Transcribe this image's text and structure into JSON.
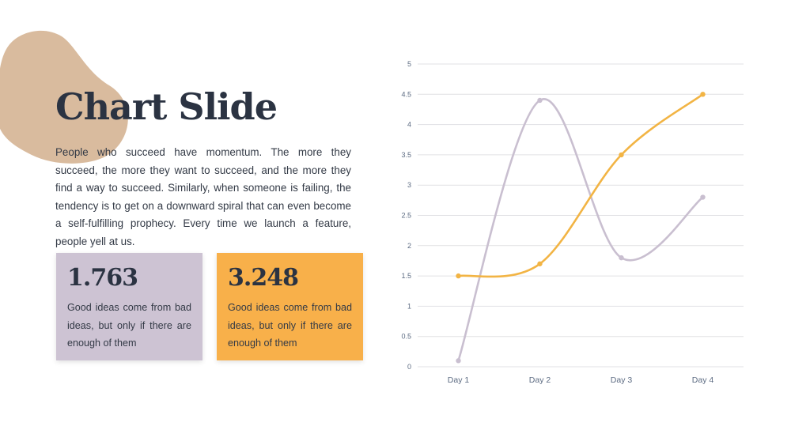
{
  "slide": {
    "title": "Chart Slide",
    "body": "People who succeed have momentum. The more they succeed, the more they want to succeed, and the more they find a way to succeed. Similarly, when someone is failing, the tendency is to get on a downward spiral that can even become a self-fulfilling prophecy. Every time we launch a feature, people yell at us."
  },
  "cards": [
    {
      "value": "1.763",
      "text": "Good ideas come from bad ideas, but only if there are enough of them",
      "color": "#cdc3d3"
    },
    {
      "value": "3.248",
      "text": "Good ideas come from bad ideas, but only if there are enough of them",
      "color": "#f8b04a"
    }
  ],
  "colors": {
    "title": "#2b3342",
    "blob": "#d9bb9e",
    "axis_text": "#5c6b82",
    "grid": "#e1e1e4"
  },
  "chart_data": {
    "type": "line",
    "smooth": true,
    "categories": [
      "Day 1",
      "Day 2",
      "Day 3",
      "Day 4"
    ],
    "ylim": [
      0,
      5
    ],
    "yticks": [
      0,
      0.5,
      1,
      1.5,
      2,
      2.5,
      3,
      3.5,
      4,
      4.5,
      5
    ],
    "grid": true,
    "legend": "none",
    "series": [
      {
        "values": [
          0.1,
          4.4,
          1.8,
          2.8
        ],
        "color": "#c9bfd0"
      },
      {
        "values": [
          1.5,
          1.7,
          3.5,
          4.5
        ],
        "color": "#f2b444"
      }
    ]
  }
}
